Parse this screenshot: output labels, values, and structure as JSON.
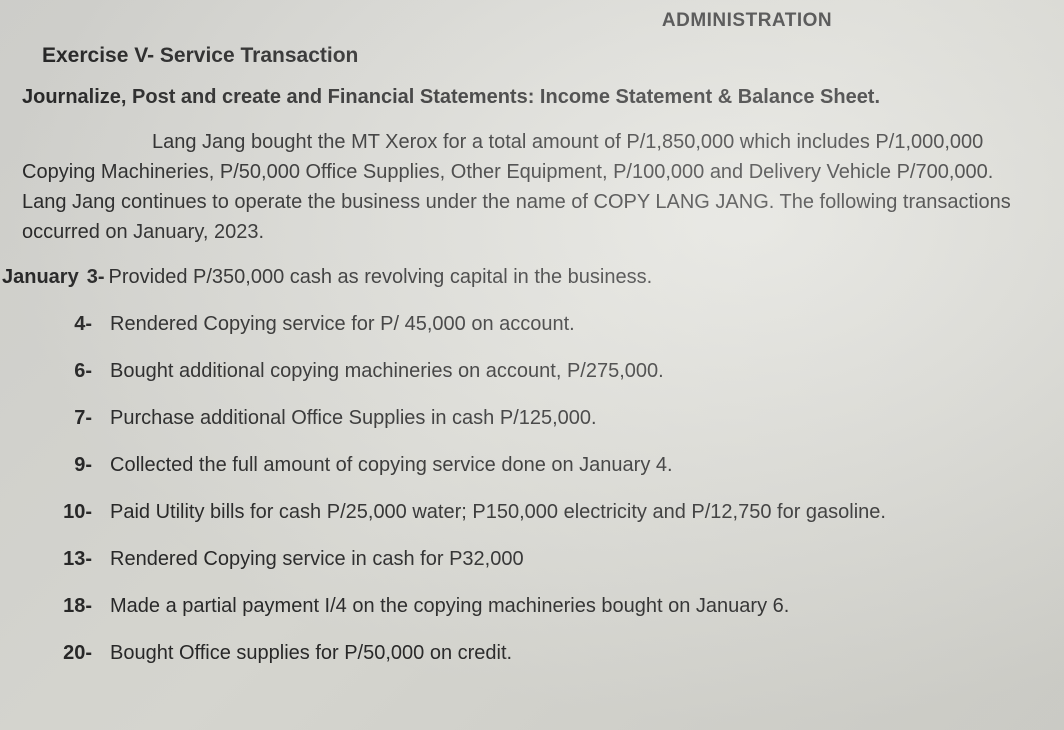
{
  "header_partial": "ADMINISTRATION",
  "exercise_title": "Exercise V- Service Transaction",
  "instruction": "Journalize, Post and create and Financial Statements: Income Statement & Balance Sheet.",
  "scenario": "Lang Jang bought the MT Xerox for a total amount of P/1,850,000 which includes P/1,000,000 Copying Machineries, P/50,000 Office Supplies, Other Equipment, P/100,000 and Delivery Vehicle P/700,000. Lang Jang continues to operate the business under the name of COPY LANG JANG. The following transactions occurred on January, 2023.",
  "month": "January",
  "transactions": [
    {
      "day": "3-",
      "text": "Provided P/350,000 cash as revolving capital in the business."
    },
    {
      "day": "4-",
      "text": "Rendered Copying service for P/ 45,000 on account."
    },
    {
      "day": "6-",
      "text": "Bought additional copying machineries on account, P/275,000."
    },
    {
      "day": "7-",
      "text": "Purchase additional Office Supplies in cash P/125,000."
    },
    {
      "day": "9-",
      "text": "Collected the full amount of copying service done on January 4."
    },
    {
      "day": "10-",
      "text": "Paid Utility bills for cash P/25,000 water; P150,000 electricity and P/12,750 for gasoline."
    },
    {
      "day": "13-",
      "text": "Rendered Copying service in cash for  P32,000"
    },
    {
      "day": "18-",
      "text": "Made a partial payment I/4 on the copying machineries bought on January 6."
    },
    {
      "day": "20-",
      "text": "Bought Office supplies for P/50,000 on credit."
    }
  ],
  "colors": {
    "text": "#2a2a2a",
    "background": "#dcdcd6"
  },
  "typography": {
    "body_fontsize": 20,
    "title_fontsize": 21,
    "font_family": "Arial"
  }
}
